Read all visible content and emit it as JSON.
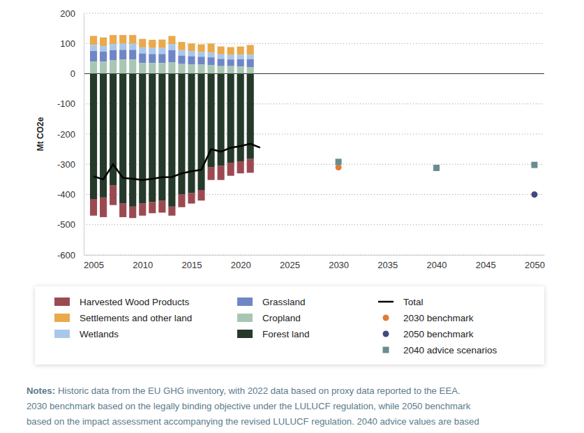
{
  "chart_data": {
    "type": "bar",
    "stacked": true,
    "grid": true,
    "legend": "bottom",
    "y_label": "Mt CO2e",
    "xlim": [
      2004,
      2051
    ],
    "xticks": [
      2005,
      2010,
      2015,
      2020,
      2025,
      2030,
      2035,
      2040,
      2045,
      2050
    ],
    "ylim": [
      -600,
      200
    ],
    "yticks": [
      200,
      100,
      0,
      -100,
      -200,
      -300,
      -400,
      -500,
      -600
    ],
    "series": [
      {
        "name": "Harvested Wood Products",
        "type": "bar",
        "color": "#9c4a52",
        "x": [
          2005,
          2006,
          2007,
          2008,
          2009,
          2010,
          2011,
          2012,
          2013,
          2014,
          2015,
          2016,
          2017,
          2018,
          2019,
          2020,
          2021
        ],
        "values": [
          -55,
          -65,
          -65,
          -45,
          -38,
          -40,
          -37,
          -40,
          -30,
          -42,
          -35,
          -35,
          -42,
          -47,
          -43,
          -40,
          -46
        ]
      },
      {
        "name": "Settlements and other land",
        "type": "bar",
        "color": "#e9a94c",
        "x": [
          2005,
          2006,
          2007,
          2008,
          2009,
          2010,
          2011,
          2012,
          2013,
          2014,
          2015,
          2016,
          2017,
          2018,
          2019,
          2020,
          2021
        ],
        "values": [
          30,
          29,
          30,
          29,
          29,
          28,
          27,
          28,
          27,
          27,
          25,
          25,
          30,
          26,
          26,
          27,
          32
        ]
      },
      {
        "name": "Wetlands",
        "type": "bar",
        "color": "#a9c7ea",
        "x": [
          2005,
          2006,
          2007,
          2008,
          2009,
          2010,
          2011,
          2012,
          2013,
          2014,
          2015,
          2016,
          2017,
          2018,
          2019,
          2020,
          2021
        ],
        "values": [
          20,
          18,
          20,
          20,
          20,
          20,
          20,
          20,
          20,
          18,
          17,
          16,
          16,
          15,
          15,
          15,
          15
        ]
      },
      {
        "name": "Grassland",
        "type": "bar",
        "color": "#6f86c6",
        "x": [
          2005,
          2006,
          2007,
          2008,
          2009,
          2010,
          2011,
          2012,
          2013,
          2014,
          2015,
          2016,
          2017,
          2018,
          2019,
          2020,
          2021
        ],
        "values": [
          35,
          33,
          33,
          32,
          32,
          32,
          30,
          30,
          40,
          28,
          28,
          26,
          26,
          24,
          22,
          24,
          26
        ]
      },
      {
        "name": "Cropland",
        "type": "bar",
        "color": "#a9c6b2",
        "x": [
          2005,
          2006,
          2007,
          2008,
          2009,
          2010,
          2011,
          2012,
          2013,
          2014,
          2015,
          2016,
          2017,
          2018,
          2019,
          2020,
          2021
        ],
        "values": [
          40,
          40,
          45,
          47,
          47,
          35,
          35,
          35,
          38,
          32,
          30,
          30,
          28,
          25,
          25,
          24,
          22
        ]
      },
      {
        "name": "Forest land",
        "type": "bar",
        "color": "#253a2b",
        "x": [
          2005,
          2006,
          2007,
          2008,
          2009,
          2010,
          2011,
          2012,
          2013,
          2014,
          2015,
          2016,
          2017,
          2018,
          2019,
          2020,
          2021
        ],
        "values": [
          -415,
          -410,
          -370,
          -430,
          -440,
          -430,
          -425,
          -420,
          -440,
          -400,
          -395,
          -385,
          -310,
          -305,
          -295,
          -290,
          -282
        ]
      },
      {
        "name": "Total",
        "type": "line",
        "color": "#000000",
        "line_style": "solid",
        "x": [
          2005,
          2006,
          2007,
          2008,
          2009,
          2010,
          2011,
          2012,
          2013,
          2014,
          2015,
          2016,
          2017,
          2018,
          2019,
          2020,
          2021,
          2022
        ],
        "values": [
          -340,
          -350,
          -300,
          -345,
          -348,
          -352,
          -348,
          -343,
          -342,
          -330,
          -323,
          -318,
          -250,
          -258,
          -245,
          -240,
          -232,
          -245
        ]
      },
      {
        "name": "2030 benchmark",
        "type": "scatter",
        "color": "#e07b39",
        "marker": "circle",
        "x": [
          2030
        ],
        "values": [
          -310
        ]
      },
      {
        "name": "2050 benchmark",
        "type": "scatter",
        "color": "#3f4a7e",
        "marker": "circle",
        "x": [
          2050
        ],
        "values": [
          -400
        ]
      },
      {
        "name": "2040 advice scenarios",
        "type": "scatter",
        "color": "#6a8c90",
        "marker": "square",
        "x": [
          2030,
          2040,
          2050
        ],
        "values": [
          -292,
          -312,
          -302
        ]
      }
    ],
    "notes": {
      "label": "Notes:",
      "lines": [
        "Historic data from the EU GHG inventory, with 2022 data based on proxy data reported to the EEA.",
        "2030 benchmark based on the legally binding objective under the LULUCF regulation, while 2050 benchmark",
        "based on the impact assessment accompanying the revised LULUCF regulation. 2040 advice values are based"
      ]
    }
  }
}
